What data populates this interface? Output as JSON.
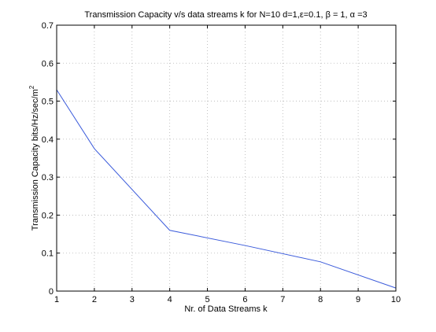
{
  "chart_data": {
    "type": "line",
    "title": "Transmission Capacity v/s data streams k for N=10  d=1,ε=0.1, β = 1, α =3",
    "xlabel": "Nr. of Data Streams k",
    "ylabel": "Transmission Capacity bits/Hz/sec/m",
    "ylabel_superscript": "2",
    "xlim": [
      1,
      10
    ],
    "ylim": [
      0,
      0.7
    ],
    "xticks": [
      "1",
      "2",
      "3",
      "4",
      "5",
      "6",
      "7",
      "8",
      "9",
      "10"
    ],
    "yticks": [
      "0",
      "0.1",
      "0.2",
      "0.3",
      "0.4",
      "0.5",
      "0.6",
      "0.7"
    ],
    "grid": true,
    "series": [
      {
        "color": "#3b5bdb",
        "x": [
          1,
          2,
          4,
          6,
          8,
          10
        ],
        "y": [
          0.53,
          0.375,
          0.16,
          0.12,
          0.077,
          0.008
        ]
      }
    ]
  }
}
